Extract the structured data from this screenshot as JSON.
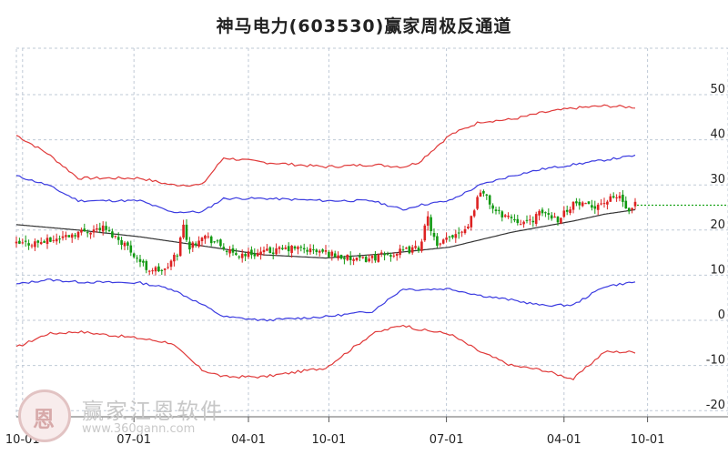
{
  "title": "神马电力(603530)赢家周极反通道",
  "watermark": {
    "name": "赢家江恩软件",
    "url": "www.360gann.com",
    "seal": "恩"
  },
  "colors": {
    "outer_band": "#e03a3a",
    "inner_band": "#3a3ae0",
    "midline": "#333333",
    "up": "#dd2222",
    "down": "#119911",
    "dotted": "#1aa31a",
    "grid": "#bfc9d6"
  },
  "chart_data": {
    "type": "candlestick-channel",
    "ylim": [
      -20,
      50
    ],
    "yticks": [
      50,
      40,
      30,
      20,
      10,
      0,
      -10,
      -20
    ],
    "x_tick_labels": [
      "10-01",
      "07-01",
      "04-01",
      "10-01",
      "07-01",
      "04-01",
      "10-01"
    ],
    "x_tick_week": [
      2,
      38,
      75,
      101,
      139,
      177,
      204
    ],
    "total_weeks": 210,
    "last_close": 25.5,
    "outer_upper": [
      [
        0,
        41
      ],
      [
        10,
        37
      ],
      [
        20,
        31.5
      ],
      [
        40,
        31.5
      ],
      [
        50,
        30
      ],
      [
        60,
        30
      ],
      [
        67,
        36
      ],
      [
        80,
        35
      ],
      [
        100,
        34
      ],
      [
        115,
        34.5
      ],
      [
        125,
        34
      ],
      [
        130,
        35
      ],
      [
        140,
        41
      ],
      [
        150,
        44
      ],
      [
        160,
        44.5
      ],
      [
        170,
        46
      ],
      [
        180,
        47
      ],
      [
        190,
        47.5
      ],
      [
        200,
        47.2
      ]
    ],
    "inner_upper": [
      [
        0,
        32
      ],
      [
        10,
        30
      ],
      [
        20,
        26.5
      ],
      [
        40,
        26.5
      ],
      [
        50,
        24
      ],
      [
        60,
        24
      ],
      [
        67,
        27
      ],
      [
        80,
        27
      ],
      [
        100,
        26.5
      ],
      [
        115,
        26.5
      ],
      [
        125,
        24.5
      ],
      [
        130,
        25.5
      ],
      [
        140,
        26.5
      ],
      [
        150,
        30
      ],
      [
        160,
        32
      ],
      [
        170,
        33.5
      ],
      [
        180,
        34.5
      ],
      [
        190,
        35.5
      ],
      [
        200,
        36.5
      ]
    ],
    "midline": [
      [
        0,
        21.2
      ],
      [
        20,
        20
      ],
      [
        40,
        18.5
      ],
      [
        60,
        16.5
      ],
      [
        80,
        14.5
      ],
      [
        100,
        13.8
      ],
      [
        120,
        14.8
      ],
      [
        140,
        16.2
      ],
      [
        160,
        19.5
      ],
      [
        180,
        22
      ],
      [
        190,
        23.5
      ],
      [
        200,
        24.5
      ]
    ],
    "inner_lower": [
      [
        0,
        8
      ],
      [
        10,
        9
      ],
      [
        20,
        8.5
      ],
      [
        40,
        8.3
      ],
      [
        50,
        7
      ],
      [
        60,
        3.5
      ],
      [
        67,
        0.8
      ],
      [
        80,
        0
      ],
      [
        100,
        0.8
      ],
      [
        115,
        2
      ],
      [
        125,
        7
      ],
      [
        130,
        6.8
      ],
      [
        140,
        7
      ],
      [
        150,
        5.5
      ],
      [
        160,
        4.5
      ],
      [
        170,
        3.3
      ],
      [
        180,
        3.4
      ],
      [
        190,
        7.5
      ],
      [
        200,
        8.5
      ]
    ],
    "outer_lower": [
      [
        0,
        -6
      ],
      [
        10,
        -3
      ],
      [
        20,
        -2.5
      ],
      [
        40,
        -4
      ],
      [
        50,
        -5
      ],
      [
        60,
        -11
      ],
      [
        67,
        -12.5
      ],
      [
        80,
        -12.5
      ],
      [
        100,
        -10.5
      ],
      [
        115,
        -3
      ],
      [
        125,
        -1
      ],
      [
        130,
        -2
      ],
      [
        140,
        -3
      ],
      [
        150,
        -7
      ],
      [
        160,
        -10
      ],
      [
        170,
        -11
      ],
      [
        180,
        -13
      ],
      [
        190,
        -7
      ],
      [
        200,
        -7
      ]
    ],
    "price_path": [
      [
        0,
        16.8
      ],
      [
        10,
        17.5
      ],
      [
        20,
        19.5
      ],
      [
        28,
        20.5
      ],
      [
        35,
        17
      ],
      [
        42,
        11.5
      ],
      [
        48,
        11
      ],
      [
        52,
        15
      ],
      [
        54,
        21
      ],
      [
        56,
        16
      ],
      [
        60,
        19
      ],
      [
        65,
        17
      ],
      [
        70,
        14.5
      ],
      [
        80,
        15
      ],
      [
        90,
        16
      ],
      [
        100,
        15
      ],
      [
        110,
        13.2
      ],
      [
        120,
        14.5
      ],
      [
        130,
        16
      ],
      [
        133,
        22.5
      ],
      [
        136,
        16
      ],
      [
        140,
        18.5
      ],
      [
        146,
        21
      ],
      [
        150,
        29
      ],
      [
        155,
        24
      ],
      [
        165,
        21.5
      ],
      [
        170,
        24
      ],
      [
        175,
        22.5
      ],
      [
        180,
        26
      ],
      [
        185,
        25
      ],
      [
        195,
        27.5
      ],
      [
        198,
        23.5
      ],
      [
        200,
        25.5
      ]
    ]
  }
}
